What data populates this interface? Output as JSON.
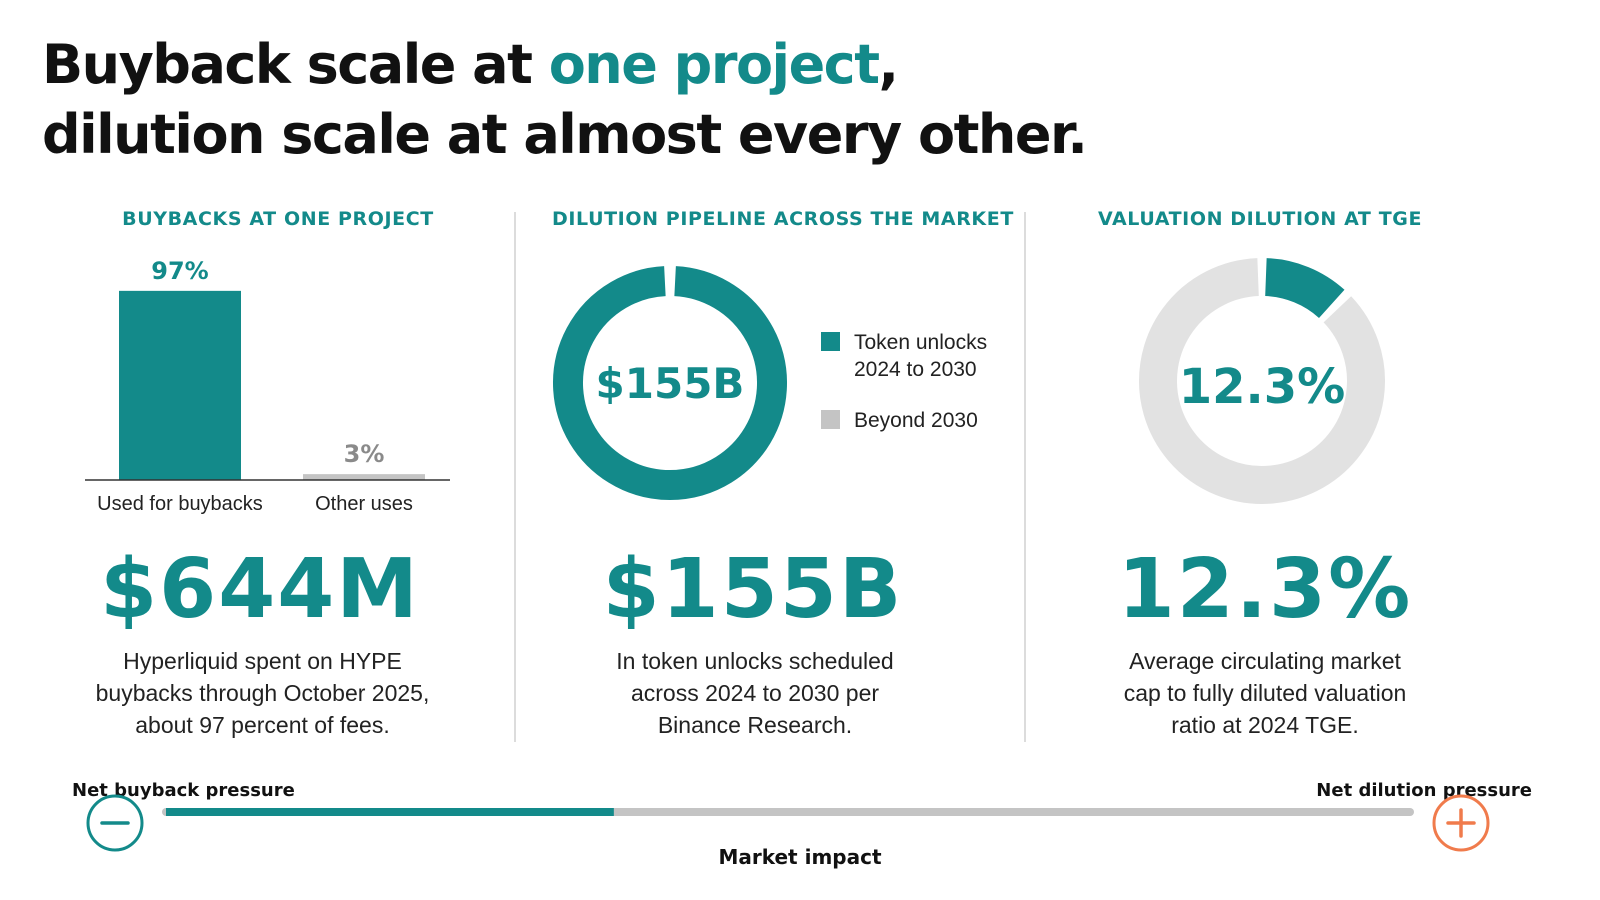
{
  "headline": {
    "line1_prefix": "Buyback scale at ",
    "line1_accent": "one project",
    "line1_suffix": ",",
    "line2": "dilution scale at almost every other."
  },
  "colors": {
    "teal": "#138a8a",
    "gray": "#c4c4c4",
    "light_gray": "#e2e2e2",
    "orange": "#f07b4c",
    "text": "#111111"
  },
  "panels": [
    {
      "title": "BUYBACKS AT ONE PROJECT",
      "big_stat": "$644M",
      "caption": "Hyperliquid spent on HYPE buybacks through October 2025, about 97 percent of fees."
    },
    {
      "title": "DILUTION PIPELINE ACROSS THE MARKET",
      "big_stat": "$155B",
      "caption": "In token unlocks scheduled across 2024 to 2030 per Binance Research."
    },
    {
      "title": "VALUATION DILUTION AT TGE",
      "big_stat": "12.3%",
      "caption": "Average circulating market cap to fully diluted valuation ratio at 2024 TGE."
    }
  ],
  "chart_data": [
    {
      "type": "bar",
      "title": "BUYBACKS AT ONE PROJECT",
      "categories": [
        "Used for buybacks",
        "Other uses"
      ],
      "values": [
        97,
        3
      ],
      "data_labels": [
        "97%",
        "3%"
      ],
      "colors": [
        "#138a8a",
        "#c4c4c4"
      ],
      "ylim": [
        0,
        100
      ]
    },
    {
      "type": "pie",
      "title": "DILUTION PIPELINE ACROSS THE MARKET",
      "center_label": "$155B",
      "labels": [
        "Token unlocks 2024 to 2030",
        "Beyond 2030"
      ],
      "legend_lines": [
        [
          "Token unlocks",
          "2024 to 2030"
        ],
        [
          "Beyond 2030"
        ]
      ],
      "values": [
        100,
        0
      ],
      "colors": [
        "#138a8a",
        "#c4c4c4"
      ],
      "legend": "right"
    },
    {
      "type": "pie",
      "title": "VALUATION DILUTION AT TGE",
      "center_label": "12.3%",
      "values": [
        12.3,
        87.7
      ],
      "colors": [
        "#138a8a",
        "#e2e2e2"
      ]
    }
  ],
  "scale": {
    "left_label": "Net buyback pressure",
    "right_label": "Net dilution pressure",
    "center_label": "Market impact",
    "fill_fraction": 0.36,
    "left_icon": "minus-circle-icon",
    "right_icon": "plus-circle-icon"
  }
}
